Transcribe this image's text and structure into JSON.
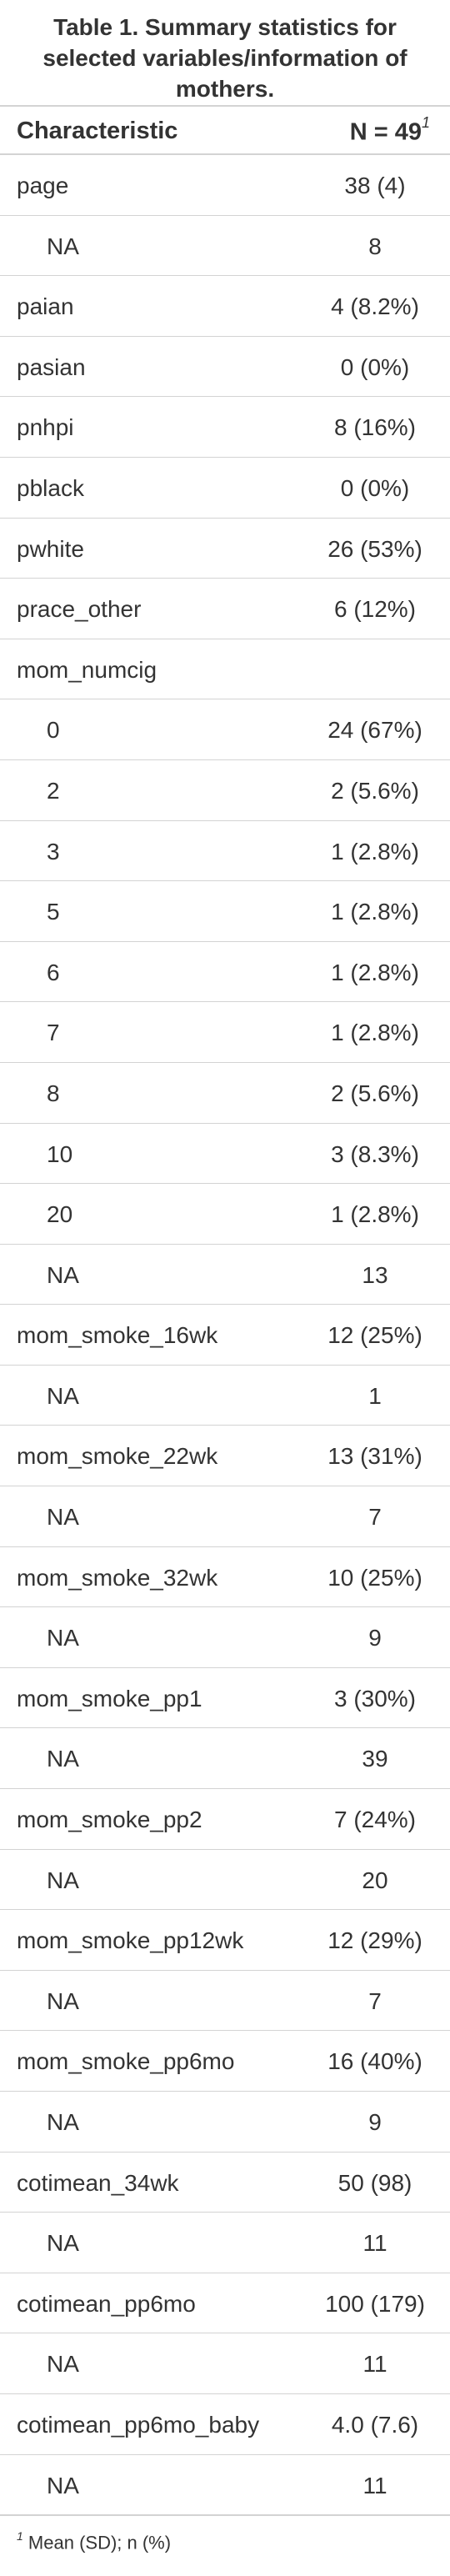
{
  "table": {
    "title": "Table 1. Summary statistics for selected variables/information of mothers.",
    "header": {
      "characteristic": "Characteristic",
      "n_label": "N = 49",
      "n_footnote_mark": "1"
    },
    "rows": [
      {
        "label": "page",
        "value": "38 (4)",
        "indent": false
      },
      {
        "label": "NA",
        "value": "8",
        "indent": true
      },
      {
        "label": "paian",
        "value": "4 (8.2%)",
        "indent": false
      },
      {
        "label": "pasian",
        "value": "0 (0%)",
        "indent": false
      },
      {
        "label": "pnhpi",
        "value": "8 (16%)",
        "indent": false
      },
      {
        "label": "pblack",
        "value": "0 (0%)",
        "indent": false
      },
      {
        "label": "pwhite",
        "value": "26 (53%)",
        "indent": false
      },
      {
        "label": "prace_other",
        "value": "6 (12%)",
        "indent": false
      },
      {
        "label": "mom_numcig",
        "value": "",
        "indent": false
      },
      {
        "label": "0",
        "value": "24 (67%)",
        "indent": true
      },
      {
        "label": "2",
        "value": "2 (5.6%)",
        "indent": true
      },
      {
        "label": "3",
        "value": "1 (2.8%)",
        "indent": true
      },
      {
        "label": "5",
        "value": "1 (2.8%)",
        "indent": true
      },
      {
        "label": "6",
        "value": "1 (2.8%)",
        "indent": true
      },
      {
        "label": "7",
        "value": "1 (2.8%)",
        "indent": true
      },
      {
        "label": "8",
        "value": "2 (5.6%)",
        "indent": true
      },
      {
        "label": "10",
        "value": "3 (8.3%)",
        "indent": true
      },
      {
        "label": "20",
        "value": "1 (2.8%)",
        "indent": true
      },
      {
        "label": "NA",
        "value": "13",
        "indent": true
      },
      {
        "label": "mom_smoke_16wk",
        "value": "12 (25%)",
        "indent": false
      },
      {
        "label": "NA",
        "value": "1",
        "indent": true
      },
      {
        "label": "mom_smoke_22wk",
        "value": "13 (31%)",
        "indent": false
      },
      {
        "label": "NA",
        "value": "7",
        "indent": true
      },
      {
        "label": "mom_smoke_32wk",
        "value": "10 (25%)",
        "indent": false
      },
      {
        "label": "NA",
        "value": "9",
        "indent": true
      },
      {
        "label": "mom_smoke_pp1",
        "value": "3 (30%)",
        "indent": false
      },
      {
        "label": "NA",
        "value": "39",
        "indent": true
      },
      {
        "label": "mom_smoke_pp2",
        "value": "7 (24%)",
        "indent": false
      },
      {
        "label": "NA",
        "value": "20",
        "indent": true
      },
      {
        "label": "mom_smoke_pp12wk",
        "value": "12 (29%)",
        "indent": false
      },
      {
        "label": "NA",
        "value": "7",
        "indent": true
      },
      {
        "label": "mom_smoke_pp6mo",
        "value": "16 (40%)",
        "indent": false
      },
      {
        "label": "NA",
        "value": "9",
        "indent": true
      },
      {
        "label": "cotimean_34wk",
        "value": "50 (98)",
        "indent": false
      },
      {
        "label": "NA",
        "value": "11",
        "indent": true
      },
      {
        "label": "cotimean_pp6mo",
        "value": "100 (179)",
        "indent": false
      },
      {
        "label": "NA",
        "value": "11",
        "indent": true
      },
      {
        "label": "cotimean_pp6mo_baby",
        "value": "4.0 (7.6)",
        "indent": false
      },
      {
        "label": "NA",
        "value": "11",
        "indent": true
      }
    ],
    "footnote": {
      "mark": "1",
      "text": "Mean (SD); n (%)"
    }
  }
}
